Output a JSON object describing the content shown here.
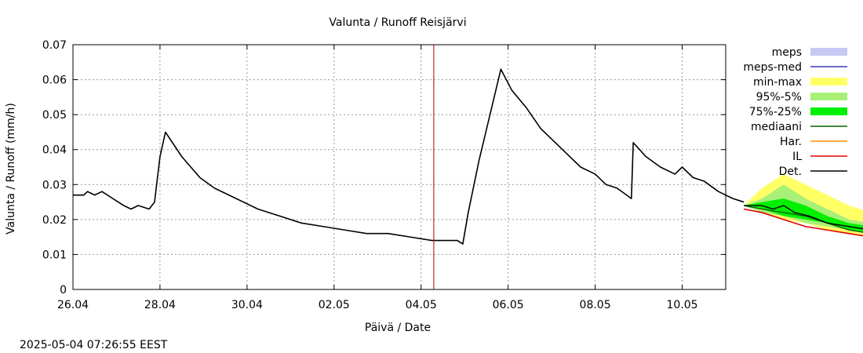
{
  "chart_data": {
    "type": "line",
    "title": "Valunta / Runoff  Reisjärvi",
    "xlabel": "Päivä / Date",
    "ylabel": "Valunta / Runoff (mm/h)",
    "timestamp": "2025-05-04 07:26:55 EEST",
    "x_range": [
      "2025-04-26T00:00",
      "2025-05-11T00:00"
    ],
    "ylim": [
      0,
      0.07
    ],
    "y_ticks": [
      0,
      0.01,
      0.02,
      0.03,
      0.04,
      0.05,
      0.06,
      0.07
    ],
    "y_tick_labels": [
      "0",
      "0.01",
      "0.02",
      "0.03",
      "0.04",
      "0.05",
      "0.06",
      "0.07"
    ],
    "x_ticks": [
      "2025-04-26T00:00",
      "2025-04-28T00:00",
      "2025-04-30T00:00",
      "2025-05-02T00:00",
      "2025-05-04T00:00",
      "2025-05-06T00:00",
      "2025-05-08T00:00",
      "2025-05-10T00:00"
    ],
    "x_tick_labels": [
      "26.04",
      "28.04",
      "30.04",
      "02.05",
      "04.05",
      "06.05",
      "08.05",
      "10.05"
    ],
    "grid": true,
    "forecast_start": "2025-05-04T07:00",
    "colors": {
      "meps": "#c8c8f5",
      "meps_med": "#3a3ab0",
      "min_max": "#ffff66",
      "p95_5": "#a8f078",
      "p75_25": "#00f000",
      "mediaani": "#006400",
      "har": "#ff8c00",
      "il": "#e00000",
      "det": "#000000",
      "forecast_line": "#b00000",
      "grid": "#999999"
    },
    "legend": {
      "placement": "right",
      "items": [
        {
          "key": "meps",
          "label": "meps",
          "kind": "band"
        },
        {
          "key": "meps_med",
          "label": "meps-med",
          "kind": "line"
        },
        {
          "key": "min_max",
          "label": "min-max",
          "kind": "band"
        },
        {
          "key": "p95_5",
          "label": "95%-5%",
          "kind": "band"
        },
        {
          "key": "p75_25",
          "label": "75%-25%",
          "kind": "band"
        },
        {
          "key": "mediaani",
          "label": "mediaani",
          "kind": "line"
        },
        {
          "key": "har",
          "label": "Har.",
          "kind": "line"
        },
        {
          "key": "il",
          "label": "IL",
          "kind": "line"
        },
        {
          "key": "det",
          "label": "Det.",
          "kind": "line"
        }
      ]
    },
    "series": {
      "observed_det": [
        [
          "2025-04-26T00:00",
          0.027
        ],
        [
          "2025-04-26T06:00",
          0.027
        ],
        [
          "2025-04-26T08:00",
          0.028
        ],
        [
          "2025-04-26T12:00",
          0.027
        ],
        [
          "2025-04-26T16:00",
          0.028
        ],
        [
          "2025-04-26T22:00",
          0.026
        ],
        [
          "2025-04-27T04:00",
          0.024
        ],
        [
          "2025-04-27T08:00",
          0.023
        ],
        [
          "2025-04-27T12:00",
          0.024
        ],
        [
          "2025-04-27T18:00",
          0.023
        ],
        [
          "2025-04-27T21:00",
          0.025
        ],
        [
          "2025-04-28T00:00",
          0.038
        ],
        [
          "2025-04-28T03:00",
          0.045
        ],
        [
          "2025-04-28T12:00",
          0.038
        ],
        [
          "2025-04-28T22:00",
          0.032
        ],
        [
          "2025-04-29T06:00",
          0.029
        ],
        [
          "2025-04-29T18:00",
          0.026
        ],
        [
          "2025-04-30T06:00",
          0.023
        ],
        [
          "2025-04-30T18:00",
          0.021
        ],
        [
          "2025-05-01T06:00",
          0.019
        ],
        [
          "2025-05-01T18:00",
          0.018
        ],
        [
          "2025-05-02T06:00",
          0.017
        ],
        [
          "2025-05-02T18:00",
          0.016
        ],
        [
          "2025-05-03T06:00",
          0.016
        ],
        [
          "2025-05-03T18:00",
          0.015
        ],
        [
          "2025-05-04T06:00",
          0.014
        ],
        [
          "2025-05-04T20:00",
          0.014
        ],
        [
          "2025-05-04T23:00",
          0.013
        ],
        [
          "2025-05-05T02:00",
          0.022
        ],
        [
          "2025-05-05T08:00",
          0.037
        ],
        [
          "2025-05-05T14:00",
          0.05
        ],
        [
          "2025-05-05T20:00",
          0.063
        ],
        [
          "2025-05-06T02:00",
          0.057
        ],
        [
          "2025-05-06T10:00",
          0.052
        ],
        [
          "2025-05-06T18:00",
          0.046
        ],
        [
          "2025-05-07T00:00",
          0.043
        ],
        [
          "2025-05-07T08:00",
          0.039
        ],
        [
          "2025-05-07T16:00",
          0.035
        ],
        [
          "2025-05-08T00:00",
          0.033
        ],
        [
          "2025-05-08T06:00",
          0.03
        ],
        [
          "2025-05-08T12:00",
          0.029
        ],
        [
          "2025-05-08T20:00",
          0.026
        ],
        [
          "2025-05-08T21:00",
          0.042
        ],
        [
          "2025-05-09T04:00",
          0.038
        ],
        [
          "2025-05-09T12:00",
          0.035
        ],
        [
          "2025-05-09T20:00",
          0.033
        ],
        [
          "2025-05-10T00:00",
          0.035
        ],
        [
          "2025-05-10T06:00",
          0.032
        ],
        [
          "2025-05-10T12:00",
          0.031
        ],
        [
          "2025-05-10T20:00",
          0.028
        ],
        [
          "2025-05-11T04:00",
          0.026
        ],
        [
          "2025-05-11T10:00",
          0.025
        ]
      ],
      "forecast_band_min_max": [
        [
          "2025-05-11T10:00",
          0.024,
          0.024
        ],
        [
          "2025-05-11T20:00",
          0.022,
          0.029
        ],
        [
          "2025-05-12T08:00",
          0.02,
          0.033
        ],
        [
          "2025-05-12T20:00",
          0.019,
          0.03
        ],
        [
          "2025-05-13T08:00",
          0.017,
          0.027
        ],
        [
          "2025-05-13T20:00",
          0.016,
          0.024
        ],
        [
          "2025-05-14T08:00",
          0.015,
          0.022
        ],
        [
          "2025-05-14T20:00",
          0.014,
          0.02
        ],
        [
          "2025-05-15T08:00",
          0.013,
          0.019
        ],
        [
          "2025-05-15T20:00",
          0.012,
          0.018
        ],
        [
          "2025-05-16T08:00",
          0.012,
          0.017
        ],
        [
          "2025-05-16T20:00",
          0.011,
          0.02
        ],
        [
          "2025-05-17T08:00",
          0.011,
          0.02
        ],
        [
          "2025-05-17T20:00",
          0.01,
          0.025
        ],
        [
          "2025-05-18T08:00",
          0.01,
          0.035
        ],
        [
          "2025-05-18T20:00",
          0.009,
          0.033
        ],
        [
          "2025-05-19T08:00",
          0.009,
          0.03
        ],
        [
          "2025-05-19T20:00",
          0.009,
          0.026
        ],
        [
          "2025-05-20T08:00",
          0.008,
          0.023
        ],
        [
          "2025-05-20T20:00",
          0.008,
          0.025
        ],
        [
          "2025-05-21T04:00",
          0.008,
          0.026
        ]
      ],
      "forecast_band_95_5": [
        [
          "2025-05-11T10:00",
          0.024,
          0.024
        ],
        [
          "2025-05-11T20:00",
          0.022,
          0.026
        ],
        [
          "2025-05-12T08:00",
          0.021,
          0.03
        ],
        [
          "2025-05-12T20:00",
          0.019,
          0.026
        ],
        [
          "2025-05-13T08:00",
          0.018,
          0.023
        ],
        [
          "2025-05-13T20:00",
          0.017,
          0.02
        ],
        [
          "2025-05-14T08:00",
          0.016,
          0.019
        ],
        [
          "2025-05-14T20:00",
          0.015,
          0.018
        ],
        [
          "2025-05-15T08:00",
          0.014,
          0.017
        ],
        [
          "2025-05-15T20:00",
          0.013,
          0.016
        ],
        [
          "2025-05-16T08:00",
          0.013,
          0.016
        ],
        [
          "2025-05-16T20:00",
          0.012,
          0.016
        ],
        [
          "2025-05-17T08:00",
          0.012,
          0.017
        ],
        [
          "2025-05-17T20:00",
          0.011,
          0.018
        ],
        [
          "2025-05-18T08:00",
          0.01,
          0.024
        ],
        [
          "2025-05-18T20:00",
          0.01,
          0.026
        ],
        [
          "2025-05-19T08:00",
          0.01,
          0.026
        ],
        [
          "2025-05-19T20:00",
          0.009,
          0.021
        ],
        [
          "2025-05-20T08:00",
          0.009,
          0.018
        ],
        [
          "2025-05-20T20:00",
          0.009,
          0.016
        ],
        [
          "2025-05-21T04:00",
          0.009,
          0.015
        ]
      ],
      "forecast_band_75_25": [
        [
          "2025-05-11T10:00",
          0.024,
          0.024
        ],
        [
          "2025-05-11T20:00",
          0.023,
          0.025
        ],
        [
          "2025-05-12T08:00",
          0.021,
          0.026
        ],
        [
          "2025-05-12T20:00",
          0.02,
          0.024
        ],
        [
          "2025-05-13T08:00",
          0.019,
          0.021
        ],
        [
          "2025-05-13T20:00",
          0.017,
          0.019
        ],
        [
          "2025-05-14T08:00",
          0.016,
          0.018
        ],
        [
          "2025-05-14T20:00",
          0.015,
          0.017
        ],
        [
          "2025-05-15T08:00",
          0.014,
          0.016
        ],
        [
          "2025-05-15T20:00",
          0.014,
          0.015
        ],
        [
          "2025-05-16T08:00",
          0.013,
          0.015
        ],
        [
          "2025-05-16T20:00",
          0.013,
          0.015
        ],
        [
          "2025-05-17T08:00",
          0.012,
          0.015
        ],
        [
          "2025-05-17T20:00",
          0.012,
          0.015
        ],
        [
          "2025-05-18T08:00",
          0.011,
          0.016
        ],
        [
          "2025-05-18T20:00",
          0.011,
          0.016
        ],
        [
          "2025-05-19T08:00",
          0.01,
          0.016
        ],
        [
          "2025-05-19T20:00",
          0.01,
          0.014
        ],
        [
          "2025-05-20T08:00",
          0.01,
          0.013
        ],
        [
          "2025-05-20T20:00",
          0.009,
          0.012
        ],
        [
          "2025-05-21T04:00",
          0.009,
          0.012
        ]
      ],
      "forecast_det": [
        [
          "2025-05-11T10:00",
          0.024
        ],
        [
          "2025-05-11T20:00",
          0.024
        ],
        [
          "2025-05-12T02:00",
          0.023
        ],
        [
          "2025-05-12T08:00",
          0.024
        ],
        [
          "2025-05-12T14:00",
          0.022
        ],
        [
          "2025-05-12T22:00",
          0.021
        ],
        [
          "2025-05-13T08:00",
          0.019
        ],
        [
          "2025-05-13T20:00",
          0.018
        ],
        [
          "2025-05-14T08:00",
          0.017
        ],
        [
          "2025-05-14T20:00",
          0.016
        ],
        [
          "2025-05-15T08:00",
          0.015
        ],
        [
          "2025-05-15T20:00",
          0.014
        ],
        [
          "2025-05-16T08:00",
          0.013
        ],
        [
          "2025-05-16T20:00",
          0.013
        ],
        [
          "2025-05-17T08:00",
          0.012
        ],
        [
          "2025-05-17T20:00",
          0.012
        ],
        [
          "2025-05-18T04:00",
          0.014
        ],
        [
          "2025-05-18T16:00",
          0.015
        ],
        [
          "2025-05-19T04:00",
          0.014
        ],
        [
          "2025-05-19T16:00",
          0.012
        ],
        [
          "2025-05-20T04:00",
          0.011
        ],
        [
          "2025-05-20T16:00",
          0.01
        ],
        [
          "2025-05-21T04:00",
          0.01
        ]
      ],
      "forecast_median": [
        [
          "2025-05-11T10:00",
          0.024
        ],
        [
          "2025-05-11T20:00",
          0.023
        ],
        [
          "2025-05-12T08:00",
          0.022
        ],
        [
          "2025-05-12T20:00",
          0.021
        ],
        [
          "2025-05-13T08:00",
          0.019
        ],
        [
          "2025-05-13T20:00",
          0.017
        ],
        [
          "2025-05-14T08:00",
          0.016
        ],
        [
          "2025-05-14T20:00",
          0.015
        ],
        [
          "2025-05-15T08:00",
          0.014
        ],
        [
          "2025-05-15T20:00",
          0.013
        ],
        [
          "2025-05-16T08:00",
          0.013
        ],
        [
          "2025-05-16T20:00",
          0.013
        ],
        [
          "2025-05-17T08:00",
          0.012
        ],
        [
          "2025-05-17T20:00",
          0.012
        ],
        [
          "2025-05-18T08:00",
          0.012
        ],
        [
          "2025-05-18T20:00",
          0.012
        ],
        [
          "2025-05-19T08:00",
          0.011
        ],
        [
          "2025-05-19T20:00",
          0.011
        ],
        [
          "2025-05-20T08:00",
          0.01
        ],
        [
          "2025-05-20T20:00",
          0.009
        ],
        [
          "2025-05-21T04:00",
          0.009
        ]
      ],
      "forecast_il": [
        [
          "2025-05-11T10:00",
          0.023
        ],
        [
          "2025-05-11T20:00",
          0.022
        ],
        [
          "2025-05-12T08:00",
          0.02
        ],
        [
          "2025-05-12T20:00",
          0.018
        ],
        [
          "2025-05-13T08:00",
          0.017
        ],
        [
          "2025-05-13T20:00",
          0.016
        ],
        [
          "2025-05-14T08:00",
          0.015
        ],
        [
          "2025-05-14T20:00",
          0.014
        ],
        [
          "2025-05-15T08:00",
          0.013
        ],
        [
          "2025-05-15T20:00",
          0.012
        ],
        [
          "2025-05-16T08:00",
          0.012
        ],
        [
          "2025-05-16T20:00",
          0.011
        ],
        [
          "2025-05-17T08:00",
          0.011
        ],
        [
          "2025-05-17T20:00",
          0.01
        ],
        [
          "2025-05-18T08:00",
          0.01
        ],
        [
          "2025-05-18T20:00",
          0.01
        ],
        [
          "2025-05-19T04:00",
          0.012
        ],
        [
          "2025-05-19T16:00",
          0.011
        ],
        [
          "2025-05-20T04:00",
          0.01
        ],
        [
          "2025-05-20T16:00",
          0.009
        ],
        [
          "2025-05-21T04:00",
          0.008
        ]
      ]
    }
  }
}
